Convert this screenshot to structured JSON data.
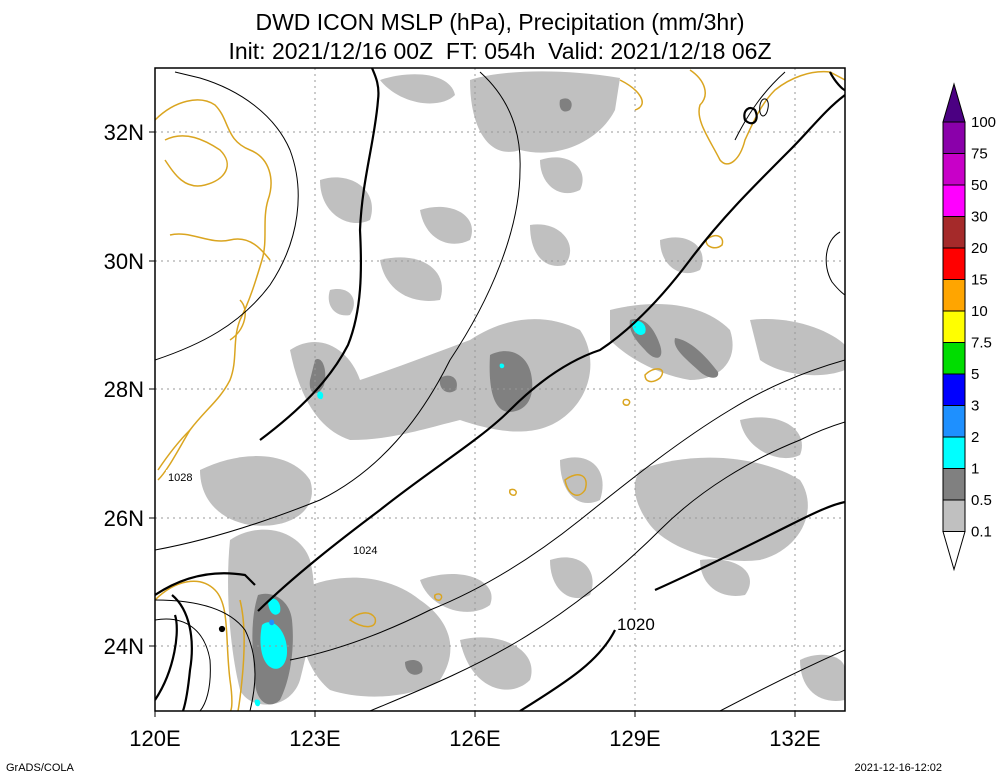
{
  "title_line1": "DWD ICON MSLP (hPa), Precipitation (mm/3hr)",
  "title_line2": "Init: 2021/12/16 00Z  FT: 054h  Valid: 2021/12/18 06Z",
  "lon_labels": [
    "120E",
    "123E",
    "126E",
    "129E",
    "132E"
  ],
  "lat_labels": [
    "32N",
    "30N",
    "28N",
    "26N",
    "24N"
  ],
  "isobar_labels": [
    "1028",
    "1024",
    "1020"
  ],
  "colorbar": {
    "labels": [
      "100",
      "75",
      "50",
      "30",
      "20",
      "15",
      "10",
      "7.5",
      "5",
      "3",
      "2",
      "1",
      "0.5",
      "0.1"
    ],
    "colors": [
      "#4b0082",
      "#8a00aa",
      "#c800c8",
      "#ff00ff",
      "#a52a2a",
      "#ff0000",
      "#ffa500",
      "#ffff00",
      "#00dd00",
      "#0000ff",
      "#1e90ff",
      "#00ffff",
      "#808080",
      "#c0c0c0"
    ]
  },
  "colors": {
    "coast": "#daa520",
    "light_precip": "#c0c0c0",
    "mid_precip": "#808080",
    "heavy_precip": "#00ffff"
  },
  "footer_left": "GrADS/COLA",
  "footer_right": "2021-12-16-12:02"
}
